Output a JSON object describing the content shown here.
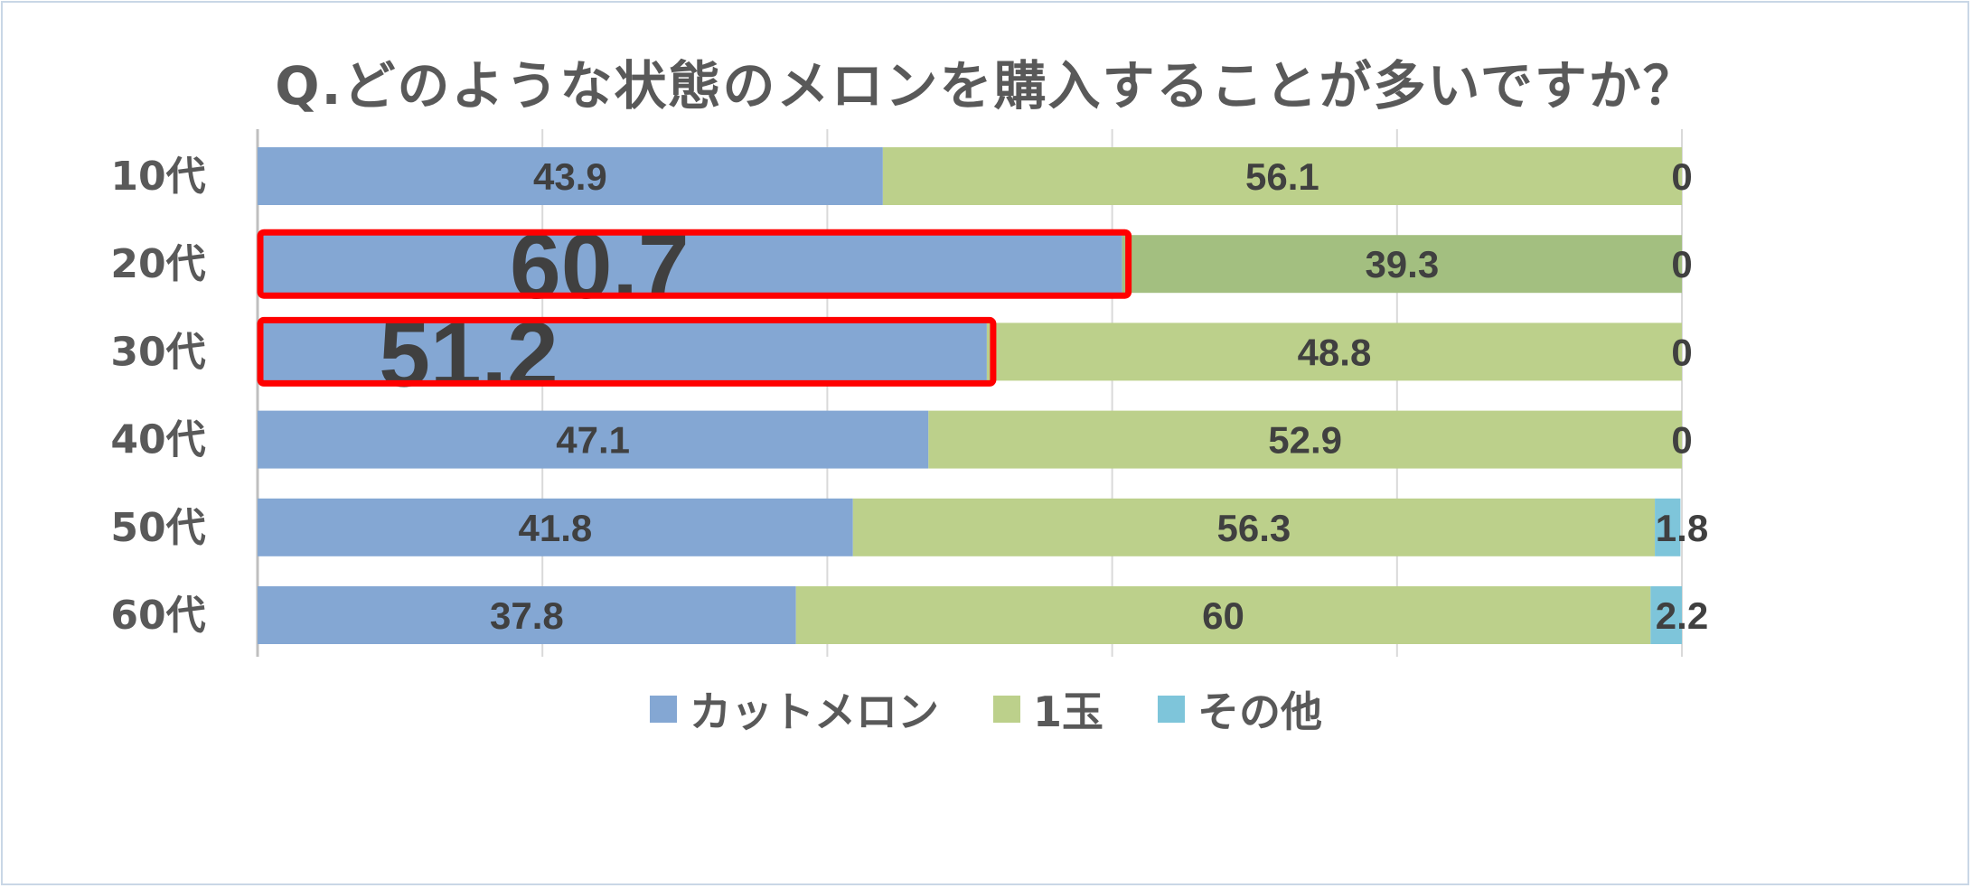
{
  "chart_data": {
    "type": "bar",
    "orientation": "horizontal-stacked-100",
    "title": "Q.どのような状態のメロンを購入することが多いですか？",
    "categories": [
      "10代",
      "20代",
      "30代",
      "40代",
      "50代",
      "60代"
    ],
    "series": [
      {
        "name": "カットメロン",
        "color": "#84a7d3",
        "values": [
          43.9,
          60.7,
          51.2,
          47.1,
          41.8,
          37.8
        ],
        "labels": [
          "43.9",
          "60.7",
          "51.2",
          "47.1",
          "41.8",
          "37.8"
        ]
      },
      {
        "name": "1玉",
        "color": "#bcd08b",
        "values": [
          56.1,
          39.3,
          48.8,
          52.9,
          56.3,
          60
        ],
        "labels": [
          "56.1",
          "39.3",
          "48.8",
          "52.9",
          "56.3",
          "60"
        ]
      },
      {
        "name": "その他",
        "color": "#7ec5da",
        "values": [
          0,
          0,
          0,
          0,
          1.8,
          2.2
        ],
        "labels": [
          "0",
          "0",
          "0",
          "0",
          "1.8",
          "2.2"
        ]
      }
    ],
    "xlim": [
      0,
      100
    ],
    "grid": true,
    "legend_position": "bottom",
    "highlighted_rows": [
      "20代",
      "30代"
    ],
    "highlight_color": "#ff0000",
    "highlight_row_fill": "#a3bf80"
  }
}
